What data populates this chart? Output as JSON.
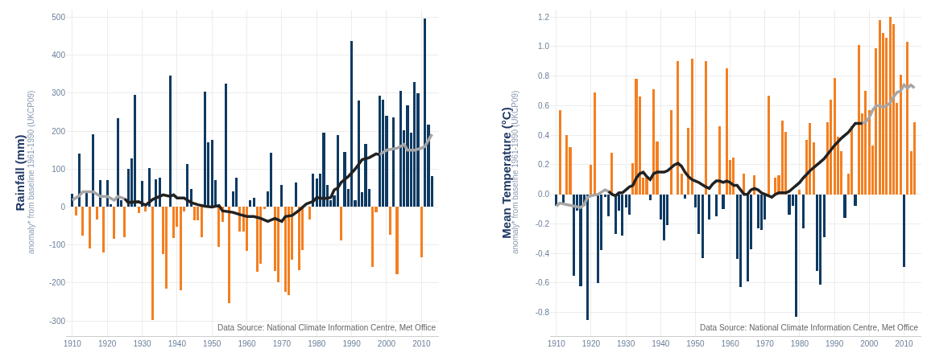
{
  "chart_data": [
    {
      "type": "bar",
      "ylabel": "Rainfall (mm)",
      "annotations": [
        "anomaly* from baseline 1961-1990 (UKCP09)",
        "Data Source: National Climate Information Centre, Met Office"
      ],
      "x": [
        1910,
        1911,
        1912,
        1913,
        1914,
        1915,
        1916,
        1917,
        1918,
        1919,
        1920,
        1921,
        1922,
        1923,
        1924,
        1925,
        1926,
        1927,
        1928,
        1929,
        1930,
        1931,
        1932,
        1933,
        1934,
        1935,
        1936,
        1937,
        1938,
        1939,
        1940,
        1941,
        1942,
        1943,
        1944,
        1945,
        1946,
        1947,
        1948,
        1949,
        1950,
        1951,
        1952,
        1953,
        1954,
        1955,
        1956,
        1957,
        1958,
        1959,
        1960,
        1961,
        1962,
        1963,
        1964,
        1965,
        1966,
        1967,
        1968,
        1969,
        1970,
        1971,
        1972,
        1973,
        1974,
        1975,
        1976,
        1977,
        1978,
        1979,
        1980,
        1981,
        1982,
        1983,
        1984,
        1985,
        1986,
        1987,
        1988,
        1989,
        1990,
        1991,
        1992,
        1993,
        1994,
        1995,
        1996,
        1997,
        1998,
        1999,
        2000,
        2001,
        2002,
        2003,
        2004,
        2005,
        2006,
        2007,
        2008,
        2009,
        2010,
        2011,
        2012,
        2013
      ],
      "series": [
        {
          "values": [
            35,
            -22,
            140,
            -75,
            40,
            -109,
            192,
            -32,
            70,
            -119,
            70,
            7,
            -84,
            233,
            17,
            -79,
            100,
            129,
            295,
            -15,
            69,
            -12,
            102,
            -297,
            73,
            77,
            -123,
            -214,
            346,
            -82,
            -51,
            -219,
            -11,
            114,
            48,
            -34,
            -34,
            -79,
            303,
            171,
            176,
            70,
            -105,
            -40,
            325,
            -253,
            42,
            77,
            -65,
            -65,
            -116,
            18,
            25,
            -171,
            -150,
            -5,
            41,
            143,
            -169,
            -199,
            58,
            -223,
            -232,
            -138,
            65,
            -166,
            -113,
            null,
            -32,
            88,
            76,
            88,
            195,
            58,
            18,
            30,
            189,
            -88,
            146,
            47,
            437,
            19,
            281,
            39,
            167,
            48,
            -158,
            -14,
            294,
            282,
            241,
            -74,
            237,
            -176,
            307,
            203,
            267,
            195,
            330,
            299,
            -133,
            497,
            217,
            82
          ],
          "colors": [
            "#0e3a62",
            "#f47f20",
            "#0e3a62",
            "#f47f20",
            "#0e3a62",
            "#f47f20",
            "#0e3a62",
            "#f47f20",
            "#0e3a62",
            "#f47f20",
            "#0e3a62",
            "#0e3a62",
            "#f47f20",
            "#0e3a62",
            "#0e3a62",
            "#f47f20",
            "#0e3a62",
            "#0e3a62",
            "#0e3a62",
            "#f47f20",
            "#0e3a62",
            "#f47f20",
            "#0e3a62",
            "#f47f20",
            "#0e3a62",
            "#0e3a62",
            "#f47f20",
            "#f47f20",
            "#0e3a62",
            "#f47f20",
            "#f47f20",
            "#f47f20",
            "#f47f20",
            "#0e3a62",
            "#0e3a62",
            "#f47f20",
            "#f47f20",
            "#f47f20",
            "#0e3a62",
            "#0e3a62",
            "#0e3a62",
            "#0e3a62",
            "#f47f20",
            "#f47f20",
            "#0e3a62",
            "#f47f20",
            "#0e3a62",
            "#0e3a62",
            "#f47f20",
            "#f47f20",
            "#f47f20",
            "#0e3a62",
            "#0e3a62",
            "#f47f20",
            "#f47f20",
            "#f47f20",
            "#0e3a62",
            "#0e3a62",
            "#f47f20",
            "#f47f20",
            "#0e3a62",
            "#f47f20",
            "#f47f20",
            "#f47f20",
            "#0e3a62",
            "#f47f20",
            "#f47f20",
            "#0e3a62",
            "#f47f20",
            "#0e3a62",
            "#0e3a62",
            "#0e3a62",
            "#0e3a62",
            "#0e3a62",
            "#0e3a62",
            "#0e3a62",
            "#0e3a62",
            "#f47f20",
            "#0e3a62",
            "#0e3a62",
            "#0e3a62",
            "#0e3a62",
            "#0e3a62",
            "#0e3a62",
            "#0e3a62",
            "#0e3a62",
            "#f47f20",
            "#f47f20",
            "#0e3a62",
            "#0e3a62",
            "#0e3a62",
            "#f47f20",
            "#0e3a62",
            "#f47f20",
            "#0e3a62",
            "#0e3a62",
            "#0e3a62",
            "#0e3a62",
            "#0e3a62",
            "#0e3a62",
            "#f47f20",
            "#0e3a62",
            "#0e3a62",
            "#0e3a62"
          ]
        },
        {
          "type": "line",
          "color": "#a6a6a6",
          "x": [
            1910,
            1912,
            1913,
            1916,
            1918,
            1920,
            1922,
            1923,
            1925,
            1960,
            1998,
            2000,
            2003,
            2005,
            2006,
            2008,
            2010,
            2011,
            2013
          ],
          "values": [
            18,
            30,
            40,
            40,
            28,
            28,
            18,
            28,
            22,
            null,
            138,
            150,
            155,
            165,
            150,
            150,
            155,
            160,
            192
          ]
        },
        {
          "type": "line",
          "color": "#222222",
          "x": [
            1925,
            1926,
            1929,
            1931,
            1933,
            1936,
            1938,
            1939,
            1940,
            1942,
            1944,
            1946,
            1948,
            1950,
            1952,
            1953,
            1956,
            1958,
            1960,
            1962,
            1964,
            1966,
            1968,
            1970,
            1971,
            1973,
            1975,
            1977,
            1979,
            1980,
            1982,
            1984,
            1985,
            1986,
            1987,
            1989,
            1991,
            1993,
            1995,
            1997,
            1998
          ],
          "values": [
            22,
            12,
            14,
            5,
            20,
            32,
            28,
            32,
            24,
            24,
            12,
            6,
            2,
            0,
            4,
            -10,
            -14,
            -20,
            -25,
            -25,
            -30,
            -38,
            -30,
            -38,
            -25,
            -22,
            -8,
            8,
            15,
            25,
            22,
            25,
            45,
            50,
            65,
            80,
            100,
            125,
            130,
            140,
            138
          ]
        }
      ],
      "xlim": [
        1908.2,
        2015
      ],
      "xticks": [
        1910,
        1920,
        1930,
        1940,
        1950,
        1960,
        1970,
        1980,
        1990,
        2000,
        2010
      ],
      "ylim": [
        -340,
        520
      ],
      "yticks": [
        -300,
        -200,
        -100,
        0,
        100,
        200,
        300,
        400,
        500
      ],
      "grid": true,
      "marker": "none",
      "line_style": "solid"
    },
    {
      "type": "bar",
      "ylabel": "Mean Temperature (°C)",
      "annotations": [
        "anomaly* from baseline 1961-1990 (UKCP09)",
        "Data Source: National Climate Information Centre, Met Office"
      ],
      "x": [
        1910,
        1911,
        1912,
        1913,
        1914,
        1915,
        1916,
        1917,
        1918,
        1919,
        1920,
        1921,
        1922,
        1923,
        1924,
        1925,
        1926,
        1927,
        1928,
        1929,
        1930,
        1931,
        1932,
        1933,
        1934,
        1935,
        1936,
        1937,
        1938,
        1939,
        1940,
        1941,
        1942,
        1943,
        1944,
        1945,
        1946,
        1947,
        1948,
        1949,
        1950,
        1951,
        1952,
        1953,
        1954,
        1955,
        1956,
        1957,
        1958,
        1959,
        1960,
        1961,
        1962,
        1963,
        1964,
        1965,
        1966,
        1967,
        1968,
        1969,
        1970,
        1971,
        1972,
        1973,
        1974,
        1975,
        1976,
        1977,
        1978,
        1979,
        1980,
        1981,
        1982,
        1983,
        1984,
        1985,
        1986,
        1987,
        1988,
        1989,
        1990,
        1991,
        1992,
        1993,
        1994,
        1995,
        1996,
        1997,
        1998,
        1999,
        2000,
        2001,
        2002,
        2003,
        2004,
        2005,
        2006,
        2007,
        2008,
        2009,
        2010,
        2011,
        2012,
        2013
      ],
      "series": [
        {
          "values": [
            -0.08,
            0.57,
            -0.07,
            0.4,
            0.32,
            -0.55,
            -0.11,
            -0.62,
            -0.08,
            -0.85,
            0.2,
            0.69,
            -0.6,
            -0.38,
            -0.02,
            -0.15,
            0.28,
            -0.27,
            -0.11,
            -0.28,
            -0.09,
            -0.14,
            0.21,
            0.78,
            0.66,
            0.11,
            0.11,
            -0.04,
            0.71,
            0.36,
            -0.17,
            -0.31,
            -0.21,
            0.57,
            0,
            0.9,
            0.14,
            -0.03,
            0.45,
            0.92,
            -0.09,
            -0.27,
            -0.43,
            0.9,
            -0.17,
            0,
            -0.15,
            0.46,
            -0.1,
            0.85,
            0.23,
            0.25,
            -0.44,
            -0.63,
            0.14,
            -0.59,
            -0.37,
            0.13,
            -0.23,
            -0.24,
            -0.17,
            0.67,
            null,
            0.11,
            0.13,
            0.5,
            0.42,
            -0.14,
            -0.08,
            -0.83,
            0.03,
            -0.23,
            0.37,
            0.48,
            0.35,
            -0.52,
            -0.61,
            -0.29,
            0.49,
            0.64,
            0.79,
            0.39,
            0.29,
            -0.16,
            0.14,
            0.46,
            -0.08,
            1.01,
            0.55,
            0.7,
            0.57,
            0.33,
            0.99,
            1.18,
            1.09,
            1.06,
            1.2,
            1.15,
            0.62,
            0.81,
            -0.49,
            1.03,
            0.29,
            0.49
          ],
          "colors": [
            "#0e3a62",
            "#f47f20",
            "#0e3a62",
            "#f47f20",
            "#f47f20",
            "#0e3a62",
            "#0e3a62",
            "#0e3a62",
            "#0e3a62",
            "#0e3a62",
            "#f47f20",
            "#f47f20",
            "#0e3a62",
            "#0e3a62",
            "#0e3a62",
            "#0e3a62",
            "#f47f20",
            "#0e3a62",
            "#0e3a62",
            "#0e3a62",
            "#0e3a62",
            "#0e3a62",
            "#f47f20",
            "#f47f20",
            "#f47f20",
            "#f47f20",
            "#f47f20",
            "#0e3a62",
            "#f47f20",
            "#f47f20",
            "#0e3a62",
            "#0e3a62",
            "#0e3a62",
            "#f47f20",
            "#f47f20",
            "#f47f20",
            "#f47f20",
            "#0e3a62",
            "#f47f20",
            "#f47f20",
            "#0e3a62",
            "#0e3a62",
            "#0e3a62",
            "#f47f20",
            "#0e3a62",
            "#f47f20",
            "#0e3a62",
            "#f47f20",
            "#0e3a62",
            "#f47f20",
            "#f47f20",
            "#f47f20",
            "#0e3a62",
            "#0e3a62",
            "#f47f20",
            "#0e3a62",
            "#0e3a62",
            "#f47f20",
            "#0e3a62",
            "#0e3a62",
            "#0e3a62",
            "#f47f20",
            "#0e3a62",
            "#f47f20",
            "#f47f20",
            "#f47f20",
            "#f47f20",
            "#0e3a62",
            "#0e3a62",
            "#0e3a62",
            "#f47f20",
            "#0e3a62",
            "#f47f20",
            "#f47f20",
            "#f47f20",
            "#0e3a62",
            "#0e3a62",
            "#0e3a62",
            "#f47f20",
            "#f47f20",
            "#f47f20",
            "#f47f20",
            "#f47f20",
            "#0e3a62",
            "#f47f20",
            "#f47f20",
            "#0e3a62",
            "#f47f20",
            "#f47f20",
            "#f47f20",
            "#f47f20",
            "#f47f20",
            "#f47f20",
            "#f47f20",
            "#f47f20",
            "#f47f20",
            "#f47f20",
            "#f47f20",
            "#f47f20",
            "#f47f20",
            "#0e3a62",
            "#f47f20",
            "#f47f20",
            "#f47f20"
          ]
        },
        {
          "type": "line",
          "color": "#a6a6a6",
          "x": [
            1910,
            1911,
            1913,
            1915,
            1917,
            1918,
            1919,
            1920,
            1922,
            1924,
            1925,
            1960,
            1998,
            1999,
            2000,
            2001,
            2002,
            2003,
            2004,
            2005,
            2006,
            2007,
            2008,
            2009,
            2010,
            2011,
            2012,
            2013
          ],
          "values": [
            -0.08,
            -0.06,
            -0.07,
            -0.08,
            -0.09,
            -0.07,
            -0.02,
            -0.01,
            0.0,
            0.03,
            0.02,
            null,
            0.48,
            0.49,
            0.52,
            0.57,
            0.6,
            0.6,
            0.59,
            0.6,
            0.62,
            0.66,
            0.69,
            0.7,
            0.74,
            0.72,
            0.74,
            0.72
          ]
        },
        {
          "type": "line",
          "color": "#222222",
          "x": [
            1925,
            1926,
            1927,
            1928,
            1929,
            1930,
            1931,
            1932,
            1933,
            1934,
            1935,
            1936,
            1937,
            1938,
            1939,
            1941,
            1942,
            1944,
            1945,
            1946,
            1947,
            1948,
            1949,
            1950,
            1951,
            1953,
            1954,
            1955,
            1956,
            1957,
            1958,
            1959,
            1960,
            1961,
            1962,
            1963,
            1964,
            1965,
            1966,
            1967,
            1968,
            1969,
            1970,
            1971,
            1972,
            1973,
            1974,
            1976,
            1977,
            1978,
            1979,
            1980,
            1981,
            1983,
            1985,
            1987,
            1988,
            1990,
            1992,
            1994,
            1995,
            1996,
            1997,
            1998
          ],
          "values": [
            0.02,
            0.0,
            -0.01,
            0.01,
            0.01,
            0.03,
            0.05,
            0.06,
            0.11,
            0.14,
            0.15,
            0.12,
            0.1,
            0.14,
            0.15,
            0.15,
            0.16,
            0.2,
            0.21,
            0.19,
            0.15,
            0.12,
            0.1,
            0.09,
            0.08,
            0.05,
            0.04,
            0.07,
            0.09,
            0.09,
            0.08,
            0.09,
            0.08,
            0.06,
            0.06,
            0.03,
            0.0,
            0.0,
            0.03,
            0.04,
            0.03,
            0.01,
            0.0,
            -0.01,
            -0.02,
            0.0,
            0.01,
            0.01,
            0.02,
            0.04,
            0.06,
            0.08,
            0.11,
            0.16,
            0.2,
            0.24,
            0.27,
            0.33,
            0.38,
            0.42,
            0.45,
            0.48,
            0.48,
            0.48
          ]
        }
      ],
      "xlim": [
        1908.2,
        2015
      ],
      "xticks": [
        1910,
        1920,
        1930,
        1940,
        1950,
        1960,
        1970,
        1980,
        1990,
        2000,
        2010
      ],
      "ylim": [
        -0.96,
        1.25
      ],
      "yticks": [
        -0.8,
        -0.6,
        -0.4,
        -0.2,
        {
          "value": 0,
          "label": "0.0"
        },
        0.2,
        0.4,
        0.6,
        0.8,
        {
          "value": 1,
          "label": "1.0"
        },
        1.2
      ],
      "grid": true,
      "marker": "none",
      "line_style": "solid"
    }
  ]
}
